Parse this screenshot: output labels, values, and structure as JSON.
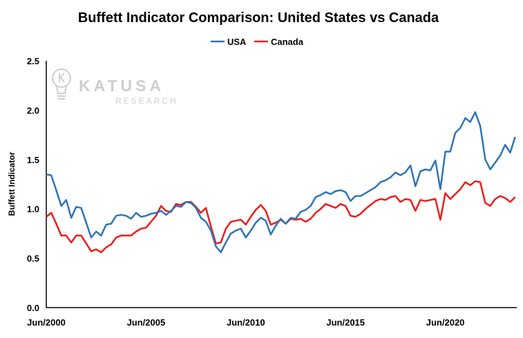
{
  "watermark": {
    "brand": "KATUSA",
    "sub": "RESEARCH",
    "color": "#c9c9c9"
  },
  "chart_data": {
    "type": "line",
    "title": "Buffett Indicator Comparison: United States vs Canada",
    "xlabel": "",
    "ylabel": "Buffett Indicator",
    "ylim": [
      0,
      2.5
    ],
    "yticks": [
      "0.0",
      "0.5",
      "1.0",
      "1.5",
      "2.0",
      "2.5"
    ],
    "xlim": [
      2000.42,
      2024.0
    ],
    "xticks": [
      {
        "label": "Jun/2000",
        "x": 2000.42
      },
      {
        "label": "Jun/2005",
        "x": 2005.42
      },
      {
        "label": "Jun/2010",
        "x": 2010.42
      },
      {
        "label": "Jun/2015",
        "x": 2015.42
      },
      {
        "label": "Jun/2020",
        "x": 2020.42
      }
    ],
    "grid": false,
    "legend": "top-center",
    "series": [
      {
        "name": "USA",
        "color": "#2e75b6",
        "x": [
          2000.42,
          2000.67,
          2000.92,
          2001.17,
          2001.42,
          2001.67,
          2001.92,
          2002.17,
          2002.42,
          2002.67,
          2002.92,
          2003.17,
          2003.42,
          2003.67,
          2003.92,
          2004.17,
          2004.42,
          2004.67,
          2004.92,
          2005.17,
          2005.42,
          2005.67,
          2005.92,
          2006.17,
          2006.42,
          2006.67,
          2006.92,
          2007.17,
          2007.42,
          2007.67,
          2007.92,
          2008.17,
          2008.42,
          2008.67,
          2008.92,
          2009.17,
          2009.42,
          2009.67,
          2009.92,
          2010.17,
          2010.42,
          2010.67,
          2010.92,
          2011.17,
          2011.42,
          2011.67,
          2011.92,
          2012.17,
          2012.42,
          2012.67,
          2012.92,
          2013.17,
          2013.42,
          2013.67,
          2013.92,
          2014.17,
          2014.42,
          2014.67,
          2014.92,
          2015.17,
          2015.42,
          2015.67,
          2015.92,
          2016.17,
          2016.42,
          2016.67,
          2016.92,
          2017.17,
          2017.42,
          2017.67,
          2017.92,
          2018.17,
          2018.42,
          2018.67,
          2018.92,
          2019.17,
          2019.42,
          2019.67,
          2019.92,
          2020.17,
          2020.42,
          2020.67,
          2020.92,
          2021.17,
          2021.42,
          2021.67,
          2021.92,
          2022.17,
          2022.42,
          2022.67,
          2022.92,
          2023.17,
          2023.42,
          2023.67,
          2023.92
        ],
        "values": [
          1.35,
          1.34,
          1.19,
          1.03,
          1.09,
          0.91,
          1.02,
          1.01,
          0.86,
          0.71,
          0.77,
          0.73,
          0.84,
          0.85,
          0.93,
          0.94,
          0.93,
          0.9,
          0.96,
          0.92,
          0.93,
          0.95,
          0.96,
          0.98,
          0.94,
          0.98,
          1.03,
          1.02,
          1.07,
          1.06,
          1.01,
          0.91,
          0.87,
          0.78,
          0.62,
          0.56,
          0.66,
          0.75,
          0.78,
          0.8,
          0.71,
          0.78,
          0.86,
          0.91,
          0.88,
          0.74,
          0.83,
          0.9,
          0.85,
          0.91,
          0.9,
          0.97,
          0.99,
          1.03,
          1.12,
          1.14,
          1.17,
          1.15,
          1.18,
          1.19,
          1.17,
          1.08,
          1.13,
          1.13,
          1.16,
          1.19,
          1.22,
          1.27,
          1.29,
          1.32,
          1.37,
          1.34,
          1.37,
          1.44,
          1.23,
          1.38,
          1.4,
          1.39,
          1.49,
          1.2,
          1.58,
          1.58,
          1.77,
          1.82,
          1.92,
          1.88,
          1.98,
          1.84,
          1.5,
          1.4,
          1.47,
          1.54,
          1.65,
          1.57,
          1.73
        ]
      },
      {
        "name": "Canada",
        "color": "#ee1c1c",
        "x": [
          2000.42,
          2000.67,
          2000.92,
          2001.17,
          2001.42,
          2001.67,
          2001.92,
          2002.17,
          2002.42,
          2002.67,
          2002.92,
          2003.17,
          2003.42,
          2003.67,
          2003.92,
          2004.17,
          2004.42,
          2004.67,
          2004.92,
          2005.17,
          2005.42,
          2005.67,
          2005.92,
          2006.17,
          2006.42,
          2006.67,
          2006.92,
          2007.17,
          2007.42,
          2007.67,
          2007.92,
          2008.17,
          2008.42,
          2008.67,
          2008.92,
          2009.17,
          2009.42,
          2009.67,
          2009.92,
          2010.17,
          2010.42,
          2010.67,
          2010.92,
          2011.17,
          2011.42,
          2011.67,
          2011.92,
          2012.17,
          2012.42,
          2012.67,
          2012.92,
          2013.17,
          2013.42,
          2013.67,
          2013.92,
          2014.17,
          2014.42,
          2014.67,
          2014.92,
          2015.17,
          2015.42,
          2015.67,
          2015.92,
          2016.17,
          2016.42,
          2016.67,
          2016.92,
          2017.17,
          2017.42,
          2017.67,
          2017.92,
          2018.17,
          2018.42,
          2018.67,
          2018.92,
          2019.17,
          2019.42,
          2019.67,
          2019.92,
          2020.17,
          2020.42,
          2020.67,
          2020.92,
          2021.17,
          2021.42,
          2021.67,
          2021.92,
          2022.17,
          2022.42,
          2022.67,
          2022.92,
          2023.17,
          2023.42,
          2023.67,
          2023.92
        ],
        "values": [
          0.92,
          0.96,
          0.85,
          0.73,
          0.73,
          0.66,
          0.73,
          0.73,
          0.65,
          0.57,
          0.59,
          0.56,
          0.61,
          0.64,
          0.71,
          0.73,
          0.73,
          0.73,
          0.77,
          0.8,
          0.81,
          0.87,
          0.93,
          1.03,
          0.98,
          0.97,
          1.05,
          1.04,
          1.07,
          1.07,
          1.02,
          0.96,
          1.01,
          0.82,
          0.65,
          0.66,
          0.8,
          0.87,
          0.88,
          0.89,
          0.84,
          0.92,
          0.99,
          1.04,
          0.98,
          0.84,
          0.86,
          0.89,
          0.85,
          0.9,
          0.89,
          0.9,
          0.87,
          0.9,
          0.96,
          1.0,
          1.05,
          1.03,
          1.01,
          1.05,
          1.03,
          0.93,
          0.92,
          0.95,
          1.0,
          1.04,
          1.08,
          1.1,
          1.09,
          1.12,
          1.13,
          1.07,
          1.1,
          1.09,
          0.98,
          1.09,
          1.08,
          1.09,
          1.1,
          0.89,
          1.16,
          1.1,
          1.15,
          1.2,
          1.27,
          1.24,
          1.28,
          1.27,
          1.06,
          1.03,
          1.1,
          1.13,
          1.11,
          1.07,
          1.12
        ]
      }
    ]
  }
}
